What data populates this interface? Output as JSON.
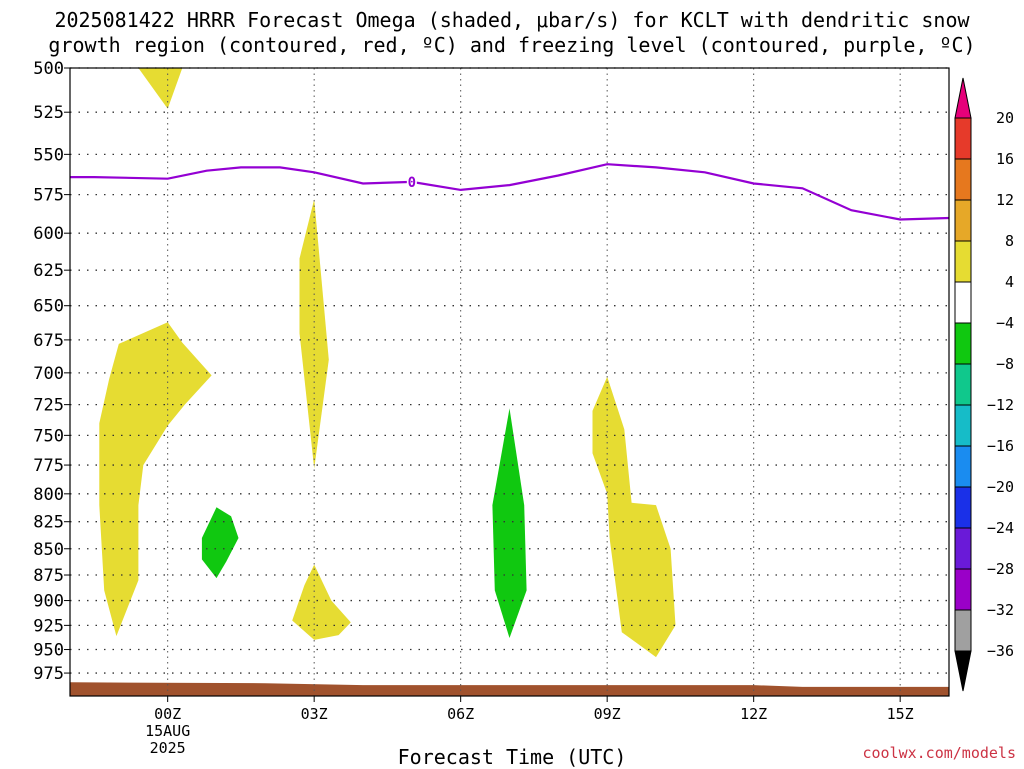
{
  "title": {
    "line1": "2025081422 HRRR Forecast Omega (shaded, μbar/s) for KCLT with dendritic snow",
    "line2": "growth region (contoured, red, ºC) and freezing level (contoured, purple, ºC)"
  },
  "credit": "coolwx.com/models",
  "chart_data": {
    "type": "heatmap",
    "title": "2025081422 HRRR Forecast Omega (shaded, μbar/s) for KCLT with dendritic snow growth region (contoured, red, ºC) and freezing level (contoured, purple, ºC)",
    "xlabel": "Forecast Time (UTC)",
    "ylabel": "",
    "x_unit": "hours since 2025-08-15 00Z",
    "xlim": [
      -2,
      16
    ],
    "ylim": [
      1000,
      500
    ],
    "y_scale": "log",
    "grid": true,
    "x_ticks": [
      {
        "x": 0,
        "label": "00Z",
        "sub": [
          "15AUG",
          "2025"
        ]
      },
      {
        "x": 3,
        "label": "03Z"
      },
      {
        "x": 6,
        "label": "06Z"
      },
      {
        "x": 9,
        "label": "09Z"
      },
      {
        "x": 12,
        "label": "12Z"
      },
      {
        "x": 15,
        "label": "15Z"
      }
    ],
    "y_ticks": [
      500,
      525,
      550,
      575,
      600,
      625,
      650,
      675,
      700,
      725,
      750,
      775,
      800,
      825,
      850,
      875,
      900,
      925,
      950,
      975
    ],
    "colorbar": {
      "levels": [
        -36,
        -32,
        -28,
        -24,
        -20,
        -16,
        -12,
        -8,
        -4,
        4,
        8,
        12,
        16,
        20
      ],
      "colors": [
        "#000000",
        "#a0a0a0",
        "#9a00c8",
        "#6a1ad8",
        "#1a30e8",
        "#1a8cf0",
        "#16bcc8",
        "#10c88c",
        "#10c810",
        "#ffffff",
        "#e6dc32",
        "#e6a828",
        "#e6781e",
        "#e63a2a",
        "#e6007a"
      ]
    },
    "freezing_level": {
      "label": "0",
      "color": "#9400d3",
      "x": [
        -2,
        -1.5,
        0,
        0.8,
        1.5,
        2.3,
        3,
        4,
        5,
        6,
        7,
        8,
        9,
        10,
        11,
        12,
        13,
        14,
        15,
        16
      ],
      "p": [
        564,
        564,
        565,
        560,
        558,
        558,
        561,
        568,
        567,
        572,
        569,
        563,
        556,
        558,
        561,
        568,
        571,
        585,
        591,
        590
      ]
    },
    "shaded_regions": [
      {
        "color": "#e6dc32",
        "points": [
          [
            -0.6,
            500
          ],
          [
            0.3,
            500
          ],
          [
            0,
            523
          ],
          [
            -0.6,
            500
          ]
        ]
      },
      {
        "color": "#e6dc32",
        "points": [
          [
            -1.0,
            678
          ],
          [
            0,
            662
          ],
          [
            0.3,
            677
          ],
          [
            0.9,
            702
          ],
          [
            0.35,
            725
          ],
          [
            0,
            742
          ],
          [
            -0.5,
            775
          ],
          [
            -0.6,
            810
          ],
          [
            -0.6,
            880
          ],
          [
            -1.05,
            936
          ],
          [
            -1.3,
            890
          ],
          [
            -1.4,
            810
          ],
          [
            -1.4,
            740
          ],
          [
            -1.2,
            705
          ]
        ]
      },
      {
        "color": "#e6dc32",
        "points": [
          [
            2.7,
            617
          ],
          [
            3.0,
            578
          ],
          [
            3.3,
            690
          ],
          [
            3.0,
            778
          ],
          [
            2.7,
            670
          ]
        ]
      },
      {
        "color": "#e6dc32",
        "points": [
          [
            2.55,
            920
          ],
          [
            2.8,
            885
          ],
          [
            3.0,
            865
          ],
          [
            3.35,
            900
          ],
          [
            3.75,
            922
          ],
          [
            3.5,
            935
          ],
          [
            3.0,
            940
          ]
        ]
      },
      {
        "color": "#10c810",
        "points": [
          [
            0.7,
            840
          ],
          [
            1.0,
            812
          ],
          [
            1.3,
            820
          ],
          [
            1.45,
            840
          ],
          [
            1.2,
            862
          ],
          [
            1.0,
            878
          ],
          [
            0.7,
            860
          ]
        ]
      },
      {
        "color": "#10c810",
        "points": [
          [
            6.65,
            810
          ],
          [
            7.0,
            728
          ],
          [
            7.3,
            810
          ],
          [
            7.35,
            890
          ],
          [
            7.0,
            938
          ],
          [
            6.7,
            890
          ]
        ]
      },
      {
        "color": "#e6dc32",
        "points": [
          [
            8.7,
            730
          ],
          [
            9.0,
            703
          ],
          [
            9.35,
            745
          ],
          [
            9.5,
            808
          ],
          [
            10.0,
            810
          ],
          [
            10.3,
            850
          ],
          [
            10.4,
            925
          ],
          [
            10.0,
            958
          ],
          [
            9.3,
            932
          ],
          [
            9.05,
            840
          ],
          [
            9.0,
            800
          ],
          [
            8.7,
            765
          ]
        ]
      }
    ],
    "surface": {
      "color": "#a0522d",
      "points": [
        [
          -2,
          985
        ],
        [
          2,
          986
        ],
        [
          4,
          988
        ],
        [
          8,
          988
        ],
        [
          12,
          988
        ],
        [
          13,
          990
        ],
        [
          16,
          990
        ]
      ]
    }
  }
}
